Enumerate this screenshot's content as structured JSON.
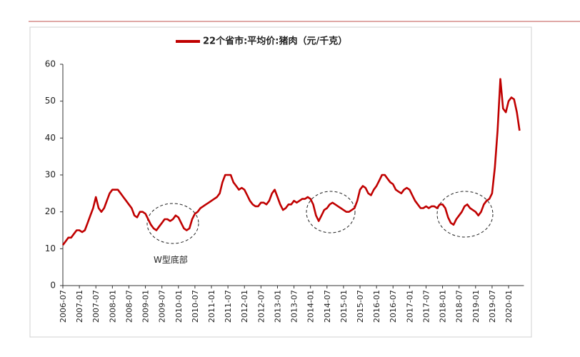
{
  "chart_data": {
    "type": "line",
    "series": [
      {
        "name": "22个省市:平均价:猪肉（元/千克）",
        "color": "#c00000",
        "values": [
          11,
          12,
          13,
          13,
          14,
          15,
          15,
          14.5,
          15,
          17,
          19,
          21,
          24,
          21,
          20,
          21,
          23,
          25,
          26,
          26,
          26,
          25,
          24,
          23,
          22,
          21,
          19,
          18.5,
          20,
          20,
          19.5,
          18,
          16.5,
          15.5,
          15,
          16,
          17,
          18,
          18,
          17.5,
          18,
          19,
          18.5,
          17,
          15.5,
          15,
          15.5,
          18,
          19.5,
          20,
          21,
          21.5,
          22,
          22.5,
          23,
          23.5,
          24,
          25,
          28,
          30,
          30,
          30,
          28,
          27,
          26,
          26.5,
          26,
          24.5,
          23,
          22,
          21.5,
          21.5,
          22.5,
          22.5,
          22,
          23,
          25,
          26,
          24,
          22,
          20.5,
          21,
          22,
          22,
          23,
          22.5,
          23,
          23.5,
          23.5,
          24,
          23.5,
          22,
          19,
          17.5,
          19,
          20.5,
          21,
          22,
          22.5,
          22,
          21.5,
          21,
          20.5,
          20,
          20,
          20.5,
          21,
          23,
          26,
          27,
          26.5,
          25,
          24.5,
          26,
          27,
          28.5,
          30,
          30,
          29,
          28,
          27.5,
          26,
          25.5,
          25,
          26,
          26.5,
          26,
          24.5,
          23,
          22,
          21,
          21,
          21.5,
          21,
          21.5,
          21.5,
          21,
          22,
          22,
          21,
          18.5,
          17,
          16.5,
          18,
          19,
          20,
          21.5,
          22,
          21,
          20.5,
          20,
          19,
          20,
          22,
          23,
          23.5,
          25,
          32,
          42,
          56,
          48,
          47,
          50,
          51,
          50.5,
          47,
          42
        ]
      }
    ],
    "categories": [
      "2006-07",
      null,
      null,
      null,
      null,
      null,
      "2007-01",
      null,
      null,
      null,
      null,
      null,
      "2007-07",
      null,
      null,
      null,
      null,
      null,
      "2008-01",
      null,
      null,
      null,
      null,
      null,
      "2008-07",
      null,
      null,
      null,
      null,
      null,
      "2009-01",
      null,
      null,
      null,
      null,
      null,
      "2009-07",
      null,
      null,
      null,
      null,
      null,
      "2010-01",
      null,
      null,
      null,
      null,
      null,
      "2010-07",
      null,
      null,
      null,
      null,
      null,
      "2011-01",
      null,
      null,
      null,
      null,
      null,
      "2011-07",
      null,
      null,
      null,
      null,
      null,
      "2012-01",
      null,
      null,
      null,
      null,
      null,
      "2012-07",
      null,
      null,
      null,
      null,
      null,
      "2013-01",
      null,
      null,
      null,
      null,
      null,
      "2013-07",
      null,
      null,
      null,
      null,
      null,
      "2014-01",
      null,
      null,
      null,
      null,
      null,
      "2014-07",
      null,
      null,
      null,
      null,
      null,
      "2015-01",
      null,
      null,
      null,
      null,
      null,
      "2015-07",
      null,
      null,
      null,
      null,
      null,
      "2016-01",
      null,
      null,
      null,
      null,
      null,
      "2016-07",
      null,
      null,
      null,
      null,
      null,
      "2017-01",
      null,
      null,
      null,
      null,
      null,
      "2017-07",
      null,
      null,
      null,
      null,
      null,
      "2018-01",
      null,
      null,
      null,
      null,
      null,
      "2018-07",
      null,
      null,
      null,
      null,
      null,
      "2019-01",
      null,
      null,
      null,
      null,
      null,
      "2019-07",
      null,
      null,
      null,
      null,
      null,
      "2020-01",
      null,
      null,
      null,
      null
    ],
    "ylim": [
      0,
      60
    ],
    "yticks": [
      0,
      10,
      20,
      30,
      40,
      50,
      60
    ],
    "annotations": [
      "W型底部"
    ],
    "grid": false,
    "legend": "top"
  }
}
